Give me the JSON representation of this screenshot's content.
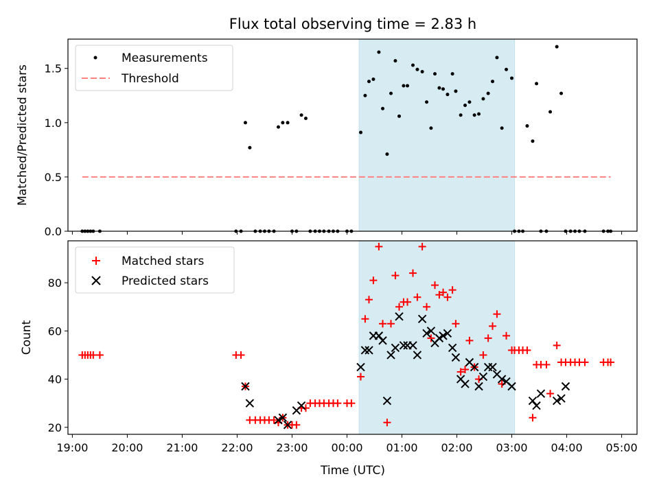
{
  "chart_data": [
    {
      "type": "scatter",
      "title": "Flux total observing time = 2.83 h",
      "xlabel": "",
      "ylabel": "Matched/Predicted stars",
      "xlim": [
        18.92,
        29.28
      ],
      "ylim": [
        0,
        1.77
      ],
      "yticks": [
        0.0,
        0.5,
        1.0,
        1.5
      ],
      "ytick_labels": [
        "0.0",
        "0.5",
        "1.0",
        "1.5"
      ],
      "legend_position": "upper-left",
      "shaded_span": [
        24.22,
        27.05
      ],
      "series": [
        {
          "name": "Measurements",
          "color": "#000000",
          "marker": "dot",
          "x": [
            19.18,
            19.23,
            19.28,
            19.33,
            19.38,
            19.5,
            21.98,
            22.07,
            22.15,
            22.23,
            22.33,
            22.42,
            22.5,
            22.58,
            22.67,
            22.75,
            22.83,
            22.92,
            23.0,
            23.08,
            23.17,
            23.25,
            23.33,
            23.42,
            23.5,
            23.58,
            23.67,
            23.75,
            23.83,
            24.0,
            24.08,
            24.25,
            24.33,
            24.4,
            24.48,
            24.58,
            24.65,
            24.73,
            24.8,
            24.88,
            24.95,
            25.03,
            25.1,
            25.2,
            25.28,
            25.37,
            25.45,
            25.53,
            25.6,
            25.68,
            25.75,
            25.83,
            25.92,
            25.98,
            26.07,
            26.15,
            26.23,
            26.32,
            26.4,
            26.48,
            26.57,
            26.65,
            26.73,
            26.82,
            26.9,
            27.0,
            27.05,
            27.13,
            27.2,
            27.28,
            27.38,
            27.45,
            27.53,
            27.63,
            27.7,
            27.82,
            27.9,
            27.98,
            28.07,
            28.15,
            28.23,
            28.33,
            28.67,
            28.75,
            28.8
          ],
          "y": [
            0,
            0,
            0,
            0,
            0,
            0,
            0,
            0,
            1.0,
            0.77,
            0,
            0,
            0,
            0,
            0,
            0.96,
            1.0,
            1.0,
            0,
            0,
            1.07,
            1.04,
            0,
            0,
            0,
            0,
            0,
            0,
            0,
            0,
            0,
            0.91,
            1.25,
            1.38,
            1.4,
            1.65,
            1.13,
            0.71,
            1.27,
            1.57,
            1.06,
            1.34,
            1.34,
            1.53,
            1.49,
            1.47,
            1.19,
            0.95,
            1.45,
            1.32,
            1.31,
            1.26,
            1.45,
            1.29,
            1.07,
            1.16,
            1.19,
            1.07,
            1.08,
            1.22,
            1.27,
            1.38,
            1.6,
            0.95,
            1.49,
            1.41,
            0,
            0,
            0,
            0.97,
            0.83,
            1.36,
            0,
            0,
            1.1,
            1.7,
            1.27,
            0,
            0,
            0,
            0,
            0,
            0,
            0,
            0
          ]
        },
        {
          "name": "Threshold",
          "color": "#ff8080",
          "marker": "dashed-line",
          "x": [
            19.18,
            28.8
          ],
          "y": [
            0.5,
            0.5
          ]
        }
      ]
    },
    {
      "type": "scatter",
      "xlabel": "Time (UTC)",
      "ylabel": "Count",
      "xlim": [
        18.92,
        29.28
      ],
      "ylim": [
        17.1,
        97.4
      ],
      "yticks": [
        20,
        40,
        60,
        80
      ],
      "ytick_labels": [
        "20",
        "40",
        "60",
        "80"
      ],
      "xticks": [
        19,
        20,
        21,
        22,
        23,
        24,
        25,
        26,
        27,
        28,
        29
      ],
      "xtick_labels": [
        "19:00",
        "20:00",
        "21:00",
        "22:00",
        "23:00",
        "00:00",
        "01:00",
        "02:00",
        "03:00",
        "04:00",
        "05:00"
      ],
      "legend_position": "upper-left",
      "shaded_span": [
        24.22,
        27.05
      ],
      "series": [
        {
          "name": "Matched stars",
          "color": "#ff0000",
          "marker": "plus",
          "x": [
            19.18,
            19.23,
            19.28,
            19.33,
            19.38,
            19.5,
            21.98,
            22.07,
            22.15,
            22.23,
            22.33,
            22.42,
            22.5,
            22.58,
            22.67,
            22.75,
            22.83,
            22.92,
            23.0,
            23.08,
            23.17,
            23.25,
            23.33,
            23.42,
            23.5,
            23.58,
            23.67,
            23.75,
            23.83,
            24.0,
            24.08,
            24.25,
            24.33,
            24.4,
            24.48,
            24.58,
            24.65,
            24.73,
            24.8,
            24.88,
            24.95,
            25.03,
            25.1,
            25.2,
            25.28,
            25.37,
            25.45,
            25.53,
            25.6,
            25.68,
            25.75,
            25.83,
            25.92,
            25.98,
            26.07,
            26.15,
            26.23,
            26.32,
            26.4,
            26.48,
            26.57,
            26.65,
            26.73,
            26.82,
            26.9,
            27.0,
            27.05,
            27.13,
            27.2,
            27.28,
            27.38,
            27.45,
            27.53,
            27.63,
            27.7,
            27.82,
            27.9,
            27.98,
            28.07,
            28.15,
            28.23,
            28.33,
            28.67,
            28.75,
            28.8
          ],
          "y": [
            50,
            50,
            50,
            50,
            50,
            50,
            50,
            50,
            37,
            23,
            23,
            23,
            23,
            23,
            23,
            22,
            24,
            21,
            21,
            21,
            28,
            28,
            30,
            30,
            30,
            30,
            30,
            30,
            30,
            30,
            30,
            41,
            65,
            73,
            81,
            95,
            63,
            22,
            63,
            83,
            70,
            72,
            72,
            84,
            74,
            95,
            70,
            57,
            79,
            75,
            76,
            74,
            77,
            63,
            43,
            44,
            56,
            45,
            40,
            50,
            57,
            62,
            67,
            38,
            58,
            52,
            52,
            52,
            52,
            52,
            24,
            46,
            46,
            46,
            34,
            54,
            47,
            47,
            47,
            47,
            47,
            47,
            47,
            47,
            47
          ]
        },
        {
          "name": "Predicted stars",
          "color": "#000000",
          "marker": "x",
          "x": [
            22.15,
            22.23,
            22.75,
            22.83,
            22.92,
            23.08,
            23.17,
            24.25,
            24.33,
            24.4,
            24.48,
            24.58,
            24.65,
            24.73,
            24.8,
            24.88,
            24.95,
            25.03,
            25.1,
            25.2,
            25.28,
            25.37,
            25.45,
            25.53,
            25.6,
            25.68,
            25.75,
            25.83,
            25.92,
            25.98,
            26.07,
            26.15,
            26.23,
            26.32,
            26.4,
            26.48,
            26.57,
            26.65,
            26.73,
            26.82,
            26.9,
            27.0,
            27.38,
            27.45,
            27.53,
            27.82,
            27.9,
            27.98
          ],
          "y": [
            37,
            30,
            23,
            24,
            21,
            27,
            29,
            45,
            52,
            52,
            58,
            58,
            56,
            31,
            50,
            53,
            66,
            54,
            54,
            54,
            50,
            65,
            59,
            60,
            55,
            57,
            58,
            59,
            53,
            49,
            40,
            38,
            47,
            45,
            37,
            41,
            45,
            45,
            42,
            40,
            39,
            37,
            31,
            29,
            34,
            31,
            32,
            37
          ]
        }
      ]
    }
  ]
}
